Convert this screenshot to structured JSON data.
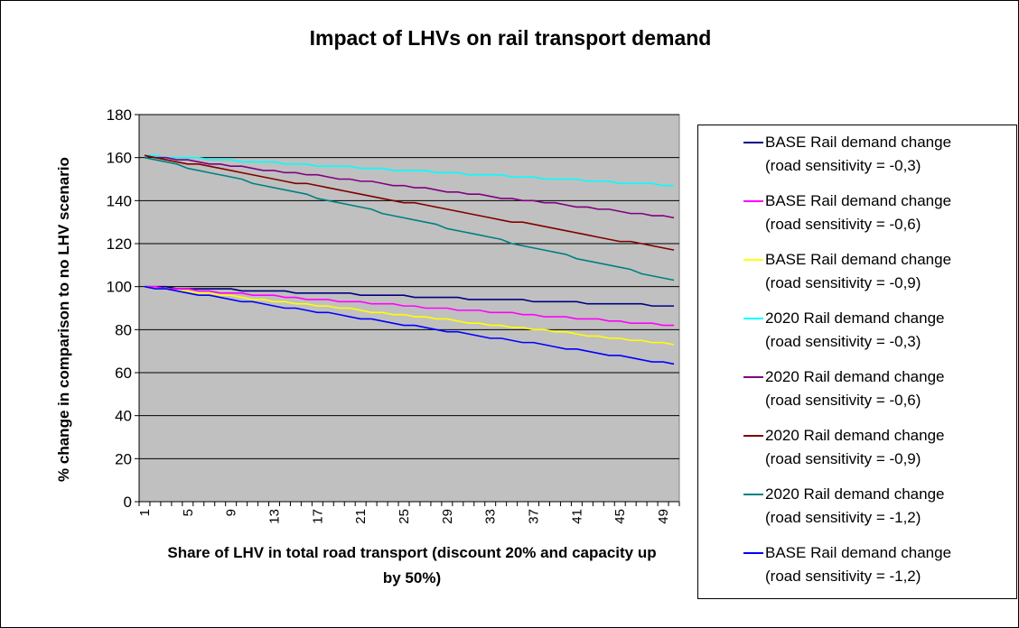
{
  "chart_data": {
    "type": "line",
    "title": "Impact of LHVs on rail transport demand",
    "x_label": "Share of LHV in total road transport (discount 20% and capacity up by 50%)",
    "y_label": "% change in comparison to no LHV scenario",
    "categories": [
      1,
      null,
      null,
      null,
      5,
      null,
      null,
      null,
      9,
      null,
      null,
      null,
      13,
      null,
      null,
      null,
      17,
      null,
      null,
      null,
      21,
      null,
      null,
      null,
      25,
      null,
      null,
      null,
      29,
      null,
      null,
      null,
      33,
      null,
      null,
      null,
      37,
      null,
      null,
      null,
      41,
      null,
      null,
      null,
      45,
      null,
      null,
      null,
      49,
      null
    ],
    "ylim": [
      0,
      180
    ],
    "yticks": [
      0,
      20,
      40,
      60,
      80,
      100,
      120,
      140,
      160,
      180
    ],
    "grid": true,
    "legend": "right",
    "series": [
      {
        "name": "BASE Rail demand change (road sensitivity = -0,3)",
        "color": "#000080",
        "values": [
          100,
          100,
          100,
          99,
          99,
          99,
          99,
          99,
          99,
          98,
          98,
          98,
          98,
          98,
          97,
          97,
          97,
          97,
          97,
          97,
          96,
          96,
          96,
          96,
          96,
          95,
          95,
          95,
          95,
          95,
          94,
          94,
          94,
          94,
          94,
          94,
          93,
          93,
          93,
          93,
          93,
          92,
          92,
          92,
          92,
          92,
          92,
          91,
          91,
          91
        ]
      },
      {
        "name": "BASE Rail demand change (road sensitivity = -0,6)",
        "color": "#ff00ff",
        "values": [
          100,
          100,
          99,
          99,
          99,
          98,
          98,
          97,
          97,
          97,
          96,
          96,
          96,
          95,
          95,
          94,
          94,
          94,
          93,
          93,
          93,
          92,
          92,
          92,
          91,
          91,
          90,
          90,
          90,
          89,
          89,
          89,
          88,
          88,
          88,
          87,
          87,
          86,
          86,
          86,
          85,
          85,
          85,
          84,
          84,
          83,
          83,
          83,
          82,
          82
        ]
      },
      {
        "name": "BASE Rail demand change (road sensitivity = -0,9)",
        "color": "#ffff00",
        "values": [
          100,
          99,
          99,
          98,
          98,
          97,
          97,
          96,
          96,
          95,
          94,
          94,
          93,
          93,
          92,
          92,
          91,
          91,
          90,
          90,
          89,
          88,
          88,
          87,
          87,
          86,
          86,
          85,
          85,
          84,
          83,
          83,
          82,
          82,
          81,
          81,
          80,
          80,
          79,
          79,
          78,
          77,
          77,
          76,
          76,
          75,
          75,
          74,
          74,
          73
        ]
      },
      {
        "name": "2020 Rail demand change (road sensitivity = -0,3)",
        "color": "#00ffff",
        "values": [
          161,
          161,
          160,
          160,
          160,
          160,
          159,
          159,
          159,
          158,
          158,
          158,
          158,
          157,
          157,
          157,
          156,
          156,
          156,
          156,
          155,
          155,
          155,
          154,
          154,
          154,
          154,
          153,
          153,
          153,
          152,
          152,
          152,
          152,
          151,
          151,
          151,
          150,
          150,
          150,
          150,
          149,
          149,
          149,
          148,
          148,
          148,
          148,
          147,
          147
        ]
      },
      {
        "name": "2020 Rail demand change (road sensitivity = -0,6)",
        "color": "#800080",
        "values": [
          161,
          160,
          160,
          159,
          159,
          158,
          157,
          157,
          156,
          156,
          155,
          154,
          154,
          153,
          153,
          152,
          152,
          151,
          150,
          150,
          149,
          149,
          148,
          147,
          147,
          146,
          146,
          145,
          144,
          144,
          143,
          143,
          142,
          141,
          141,
          140,
          140,
          139,
          139,
          138,
          137,
          137,
          136,
          136,
          135,
          134,
          134,
          133,
          133,
          132
        ]
      },
      {
        "name": "2020 Rail demand change (road sensitivity = -0,9)",
        "color": "#800000",
        "values": [
          161,
          160,
          159,
          158,
          157,
          157,
          156,
          155,
          154,
          153,
          152,
          151,
          150,
          149,
          148,
          148,
          147,
          146,
          145,
          144,
          143,
          142,
          141,
          140,
          139,
          139,
          138,
          137,
          136,
          135,
          134,
          133,
          132,
          131,
          130,
          130,
          129,
          128,
          127,
          126,
          125,
          124,
          123,
          122,
          121,
          121,
          120,
          119,
          118,
          117
        ]
      },
      {
        "name": "2020 Rail demand change (road sensitivity = -1,2)",
        "color": "#008080",
        "values": [
          160,
          159,
          158,
          157,
          155,
          154,
          153,
          152,
          151,
          150,
          148,
          147,
          146,
          145,
          144,
          143,
          141,
          140,
          139,
          138,
          137,
          136,
          134,
          133,
          132,
          131,
          130,
          129,
          127,
          126,
          125,
          124,
          123,
          122,
          120,
          119,
          118,
          117,
          116,
          115,
          113,
          112,
          111,
          110,
          109,
          108,
          106,
          105,
          104,
          103
        ]
      },
      {
        "name": "BASE Rail demand change (road sensitivity = -1,2)",
        "color": "#0000ff",
        "values": [
          100,
          99,
          99,
          98,
          97,
          96,
          96,
          95,
          94,
          93,
          93,
          92,
          91,
          90,
          90,
          89,
          88,
          88,
          87,
          86,
          85,
          85,
          84,
          83,
          82,
          82,
          81,
          80,
          79,
          79,
          78,
          77,
          76,
          76,
          75,
          74,
          74,
          73,
          72,
          71,
          71,
          70,
          69,
          68,
          68,
          67,
          66,
          65,
          65,
          64
        ]
      }
    ]
  }
}
